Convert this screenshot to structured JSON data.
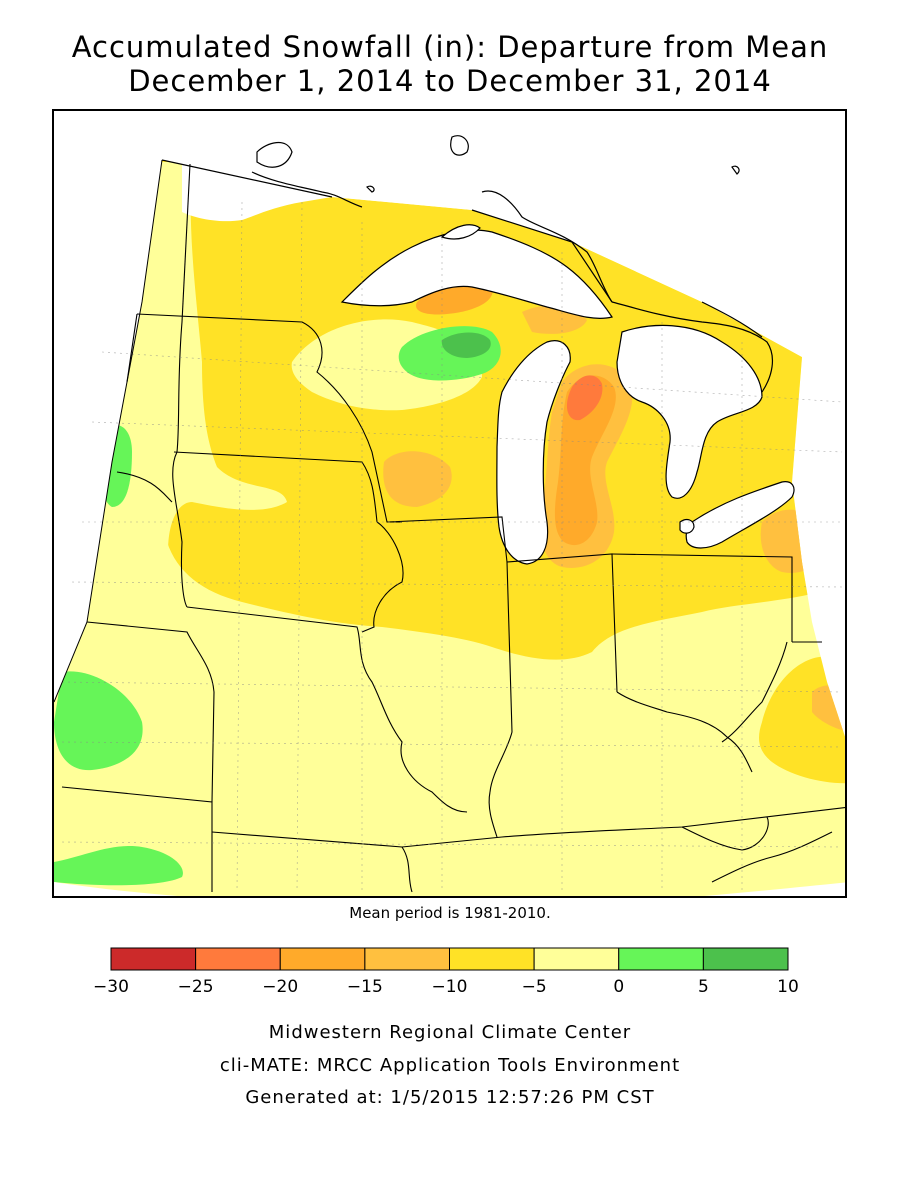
{
  "header": {
    "title_line1": "Accumulated Snowfall (in): Departure from Mean",
    "title_line2": "December 1, 2014 to December 31, 2014"
  },
  "map": {
    "note": "Mean period is 1981-2010."
  },
  "legend": {
    "bins": [
      {
        "min": -30,
        "max": -25,
        "color": "#cc2a2a"
      },
      {
        "min": -25,
        "max": -20,
        "color": "#ff7a3c"
      },
      {
        "min": -20,
        "max": -15,
        "color": "#ffaa2a"
      },
      {
        "min": -15,
        "max": -10,
        "color": "#ffc03f"
      },
      {
        "min": -10,
        "max": -5,
        "color": "#ffe226"
      },
      {
        "min": -5,
        "max": 0,
        "color": "#ffff99"
      },
      {
        "min": 0,
        "max": 5,
        "color": "#66f558"
      },
      {
        "min": 5,
        "max": 10,
        "color": "#4cc14c"
      }
    ],
    "tick_labels": [
      "−30",
      "−25",
      "−20",
      "−15",
      "−10",
      "−5",
      "0",
      "5",
      "10"
    ]
  },
  "footer": {
    "line1": "Midwestern Regional Climate Center",
    "line2": "cli-MATE: MRCC Application Tools Environment",
    "line3": "Generated at: 1/5/2015 12:57:26 PM CST"
  }
}
